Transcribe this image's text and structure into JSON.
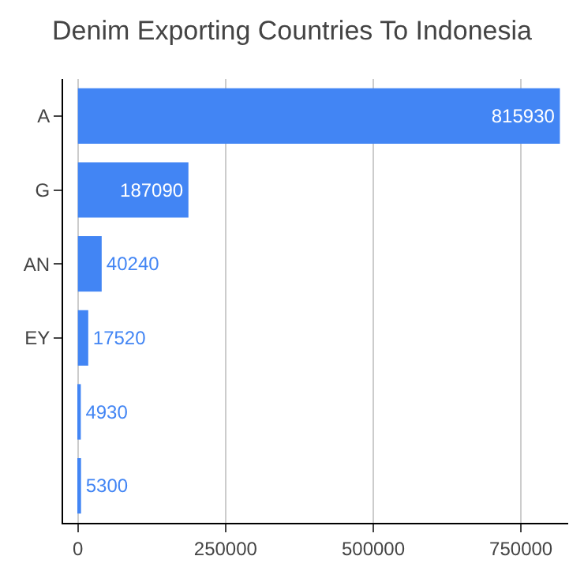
{
  "chart_data": {
    "type": "bar",
    "orientation": "horizontal",
    "title": "Denim Exporting Countries To Indonesia",
    "categories": [
      "A",
      "G",
      "AN",
      "EY",
      null,
      null
    ],
    "values": [
      815930,
      187090,
      40240,
      17520,
      4930,
      5300
    ],
    "color": "#4285f4",
    "data_labels": true,
    "xlim": [
      -25000,
      830000
    ],
    "xticks": [
      0,
      250000,
      500000,
      750000
    ],
    "grid": "x",
    "legend": false
  }
}
